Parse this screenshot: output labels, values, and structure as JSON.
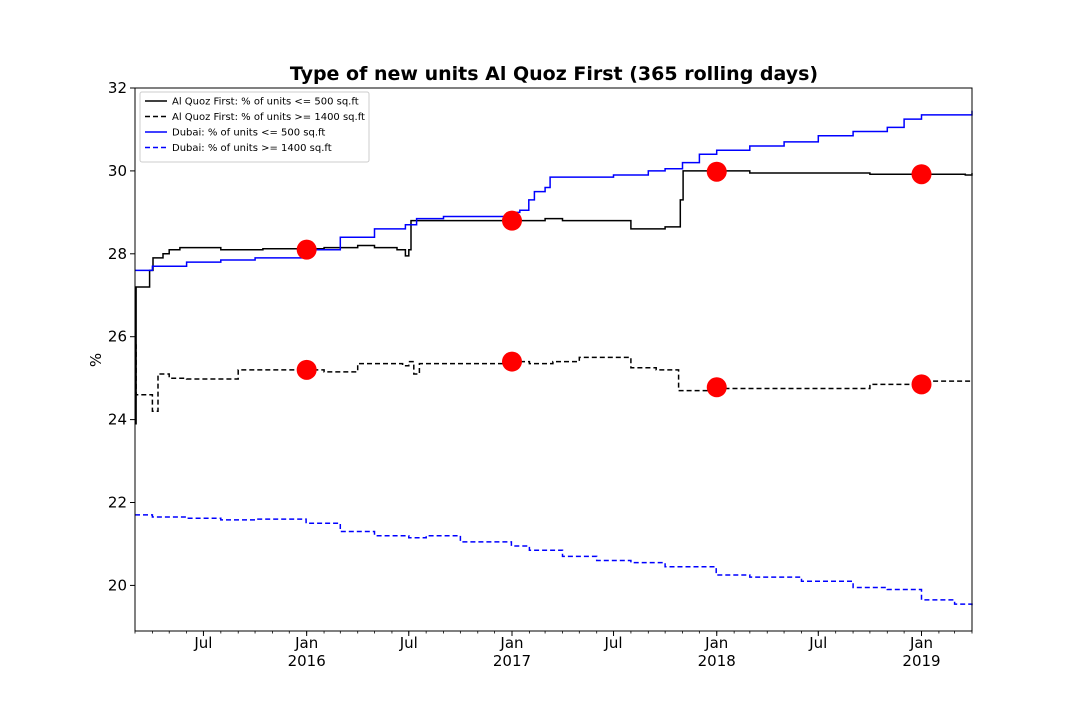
{
  "chart_data": {
    "type": "line",
    "title": "Type of new units Al Quoz First (365 rolling days)",
    "xlabel": "",
    "ylabel": "%",
    "xlim": [
      "2015-03-01",
      "2019-04-01"
    ],
    "ylim": [
      18.9,
      32.0
    ],
    "yticks": [
      20,
      22,
      24,
      26,
      28,
      30,
      32
    ],
    "xticks": [
      {
        "date": "2015-07-01",
        "label": "Jul",
        "year": ""
      },
      {
        "date": "2016-01-01",
        "label": "Jan",
        "year": "2016"
      },
      {
        "date": "2016-07-01",
        "label": "Jul",
        "year": ""
      },
      {
        "date": "2017-01-01",
        "label": "Jan",
        "year": "2017"
      },
      {
        "date": "2017-07-01",
        "label": "Jul",
        "year": ""
      },
      {
        "date": "2018-01-01",
        "label": "Jan",
        "year": "2018"
      },
      {
        "date": "2018-07-01",
        "label": "Jul",
        "year": ""
      },
      {
        "date": "2019-01-01",
        "label": "Jan",
        "year": "2019"
      }
    ],
    "grid": false,
    "legend_position": "top-left",
    "series": [
      {
        "name": "Al Quoz First: % of units <= 500 sq.ft",
        "color": "#000000",
        "dash": "solid",
        "points": [
          [
            "2015-03-01",
            23.9
          ],
          [
            "2015-03-03",
            27.2
          ],
          [
            "2015-03-25",
            27.2
          ],
          [
            "2015-03-27",
            27.6
          ],
          [
            "2015-04-02",
            27.9
          ],
          [
            "2015-04-10",
            27.9
          ],
          [
            "2015-04-20",
            28.0
          ],
          [
            "2015-05-01",
            28.1
          ],
          [
            "2015-05-20",
            28.15
          ],
          [
            "2015-06-15",
            28.15
          ],
          [
            "2015-07-15",
            28.15
          ],
          [
            "2015-08-01",
            28.1
          ],
          [
            "2015-09-01",
            28.1
          ],
          [
            "2015-10-15",
            28.12
          ],
          [
            "2015-12-31",
            28.12
          ],
          [
            "2016-02-01",
            28.15
          ],
          [
            "2016-04-01",
            28.2
          ],
          [
            "2016-05-01",
            28.15
          ],
          [
            "2016-06-10",
            28.1
          ],
          [
            "2016-06-23",
            28.1
          ],
          [
            "2016-06-25",
            27.95
          ],
          [
            "2016-07-01",
            28.1
          ],
          [
            "2016-07-05",
            28.8
          ],
          [
            "2016-09-01",
            28.8
          ],
          [
            "2016-11-01",
            28.8
          ],
          [
            "2016-12-31",
            28.8
          ],
          [
            "2017-03-01",
            28.85
          ],
          [
            "2017-04-01",
            28.8
          ],
          [
            "2017-07-01",
            28.8
          ],
          [
            "2017-07-20",
            28.8
          ],
          [
            "2017-08-01",
            28.6
          ],
          [
            "2017-09-01",
            28.6
          ],
          [
            "2017-10-01",
            28.65
          ],
          [
            "2017-10-24",
            28.65
          ],
          [
            "2017-10-28",
            29.3
          ],
          [
            "2017-11-02",
            30.0
          ],
          [
            "2017-12-31",
            30.0
          ],
          [
            "2018-03-01",
            29.95
          ],
          [
            "2018-07-01",
            29.95
          ],
          [
            "2018-10-01",
            29.92
          ],
          [
            "2018-12-31",
            29.92
          ],
          [
            "2019-03-20",
            29.9
          ],
          [
            "2019-04-01",
            29.95
          ]
        ]
      },
      {
        "name": "Al Quoz First: % of units >= 1400 sq.ft",
        "color": "#000000",
        "dash": "dashed",
        "points": [
          [
            "2015-03-01",
            25.8
          ],
          [
            "2015-03-03",
            24.6
          ],
          [
            "2015-03-28",
            24.6
          ],
          [
            "2015-04-01",
            24.2
          ],
          [
            "2015-04-09",
            24.2
          ],
          [
            "2015-04-11",
            25.1
          ],
          [
            "2015-05-01",
            25.0
          ],
          [
            "2015-06-01",
            24.98
          ],
          [
            "2015-08-01",
            24.98
          ],
          [
            "2015-09-01",
            25.2
          ],
          [
            "2015-12-31",
            25.2
          ],
          [
            "2016-02-01",
            25.15
          ],
          [
            "2016-03-01",
            25.15
          ],
          [
            "2016-04-01",
            25.35
          ],
          [
            "2016-06-20",
            25.3
          ],
          [
            "2016-07-01",
            25.4
          ],
          [
            "2016-07-10",
            25.1
          ],
          [
            "2016-07-20",
            25.35
          ],
          [
            "2016-10-01",
            25.35
          ],
          [
            "2016-12-31",
            25.4
          ],
          [
            "2017-02-01",
            25.35
          ],
          [
            "2017-03-15",
            25.4
          ],
          [
            "2017-05-01",
            25.5
          ],
          [
            "2017-07-01",
            25.5
          ],
          [
            "2017-07-20",
            25.5
          ],
          [
            "2017-08-01",
            25.25
          ],
          [
            "2017-09-15",
            25.2
          ],
          [
            "2017-10-10",
            25.2
          ],
          [
            "2017-10-25",
            24.7
          ],
          [
            "2017-12-31",
            24.75
          ],
          [
            "2018-03-01",
            24.75
          ],
          [
            "2018-06-01",
            24.75
          ],
          [
            "2018-09-01",
            24.75
          ],
          [
            "2018-10-01",
            24.85
          ],
          [
            "2018-12-31",
            24.85
          ],
          [
            "2019-01-15",
            24.93
          ],
          [
            "2019-04-01",
            24.93
          ]
        ]
      },
      {
        "name": "Dubai: % of units <= 500 sq.ft",
        "color": "#0000ff",
        "dash": "solid",
        "points": [
          [
            "2015-03-01",
            27.6
          ],
          [
            "2015-04-01",
            27.7
          ],
          [
            "2015-06-01",
            27.8
          ],
          [
            "2015-08-01",
            27.85
          ],
          [
            "2015-10-01",
            27.9
          ],
          [
            "2015-12-31",
            28.1
          ],
          [
            "2016-03-01",
            28.4
          ],
          [
            "2016-05-01",
            28.6
          ],
          [
            "2016-06-25",
            28.7
          ],
          [
            "2016-07-15",
            28.85
          ],
          [
            "2016-09-01",
            28.9
          ],
          [
            "2016-12-31",
            29.0
          ],
          [
            "2017-01-15",
            29.05
          ],
          [
            "2017-01-31",
            29.3
          ],
          [
            "2017-02-10",
            29.5
          ],
          [
            "2017-03-01",
            29.6
          ],
          [
            "2017-03-10",
            29.85
          ],
          [
            "2017-05-01",
            29.85
          ],
          [
            "2017-07-01",
            29.9
          ],
          [
            "2017-09-01",
            30.0
          ],
          [
            "2017-10-01",
            30.05
          ],
          [
            "2017-11-01",
            30.2
          ],
          [
            "2017-12-01",
            30.4
          ],
          [
            "2018-01-01",
            30.5
          ],
          [
            "2018-03-01",
            30.6
          ],
          [
            "2018-05-01",
            30.7
          ],
          [
            "2018-07-01",
            30.85
          ],
          [
            "2018-09-01",
            30.95
          ],
          [
            "2018-11-01",
            31.05
          ],
          [
            "2018-12-01",
            31.25
          ],
          [
            "2019-01-01",
            31.35
          ],
          [
            "2019-03-01",
            31.35
          ],
          [
            "2019-04-01",
            31.45
          ]
        ]
      },
      {
        "name": "Dubai: % of units >= 1400 sq.ft",
        "color": "#0000ff",
        "dash": "dashed",
        "points": [
          [
            "2015-03-01",
            21.7
          ],
          [
            "2015-04-01",
            21.65
          ],
          [
            "2015-06-01",
            21.62
          ],
          [
            "2015-08-01",
            21.58
          ],
          [
            "2015-10-01",
            21.6
          ],
          [
            "2015-12-31",
            21.5
          ],
          [
            "2016-03-01",
            21.3
          ],
          [
            "2016-05-01",
            21.2
          ],
          [
            "2016-07-01",
            21.15
          ],
          [
            "2016-08-01",
            21.2
          ],
          [
            "2016-10-01",
            21.05
          ],
          [
            "2016-12-31",
            20.95
          ],
          [
            "2017-02-01",
            20.85
          ],
          [
            "2017-04-01",
            20.7
          ],
          [
            "2017-06-01",
            20.6
          ],
          [
            "2017-08-01",
            20.55
          ],
          [
            "2017-10-01",
            20.45
          ],
          [
            "2017-12-31",
            20.25
          ],
          [
            "2018-03-01",
            20.2
          ],
          [
            "2018-06-01",
            20.1
          ],
          [
            "2018-09-01",
            19.95
          ],
          [
            "2018-11-01",
            19.9
          ],
          [
            "2019-01-01",
            19.65
          ],
          [
            "2019-03-01",
            19.55
          ],
          [
            "2019-04-01",
            19.45
          ]
        ]
      }
    ],
    "markers": [
      {
        "color": "#ff0000",
        "points": [
          [
            "2016-01-01",
            28.1
          ],
          [
            "2017-01-01",
            28.8
          ],
          [
            "2018-01-01",
            29.98
          ],
          [
            "2019-01-01",
            29.92
          ],
          [
            "2016-01-01",
            25.2
          ],
          [
            "2017-01-01",
            25.4
          ],
          [
            "2018-01-01",
            24.78
          ],
          [
            "2019-01-01",
            24.85
          ]
        ]
      }
    ]
  }
}
